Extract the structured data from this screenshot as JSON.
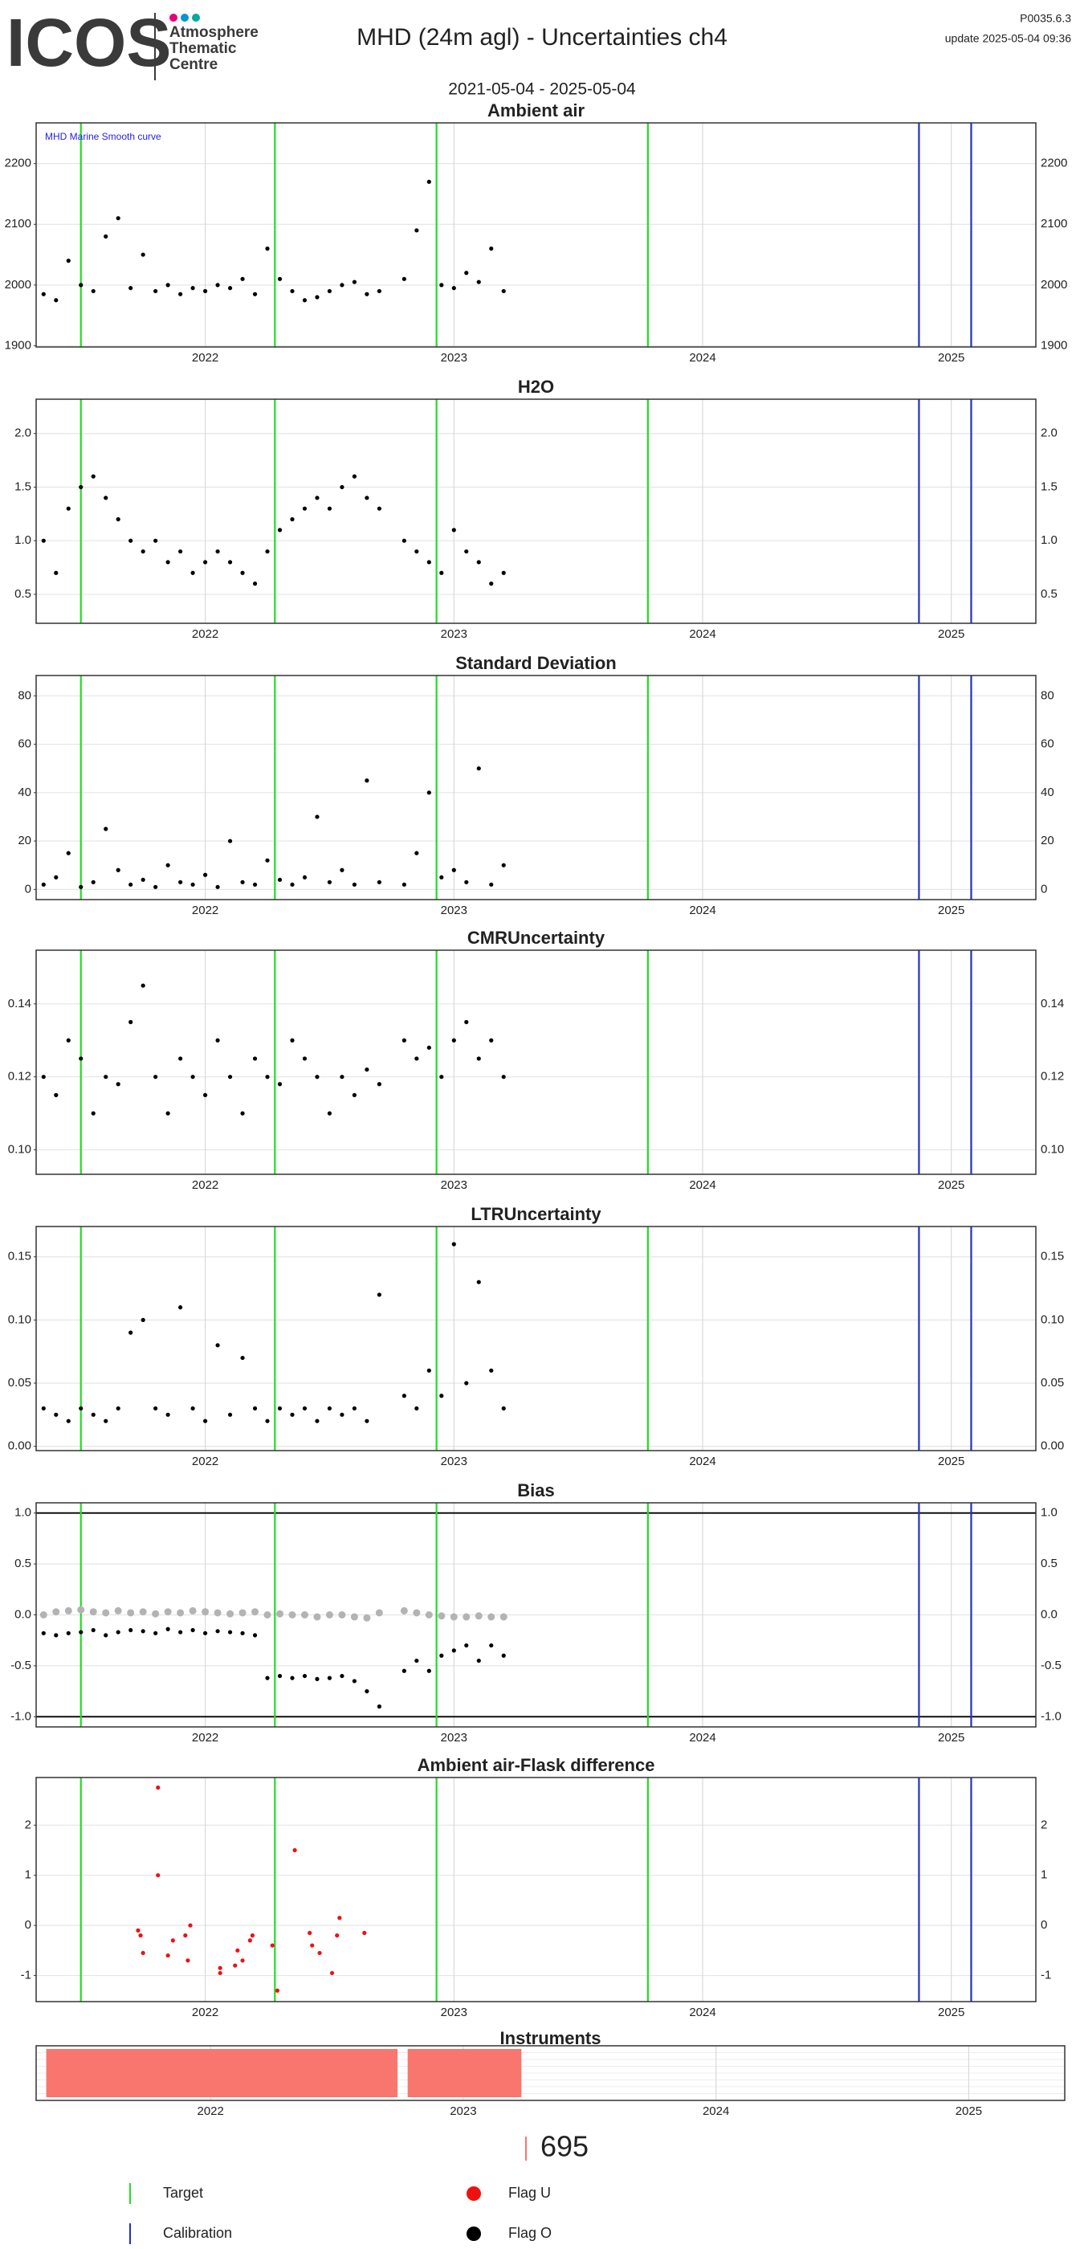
{
  "header": {
    "logo_text": "ICOS",
    "logo_lines": [
      "Atmosphere",
      "Thematic",
      "Centre"
    ],
    "title": "MHD  (24m agl) - Uncertainties ch4",
    "subtitle": "2021-05-04 - 2025-05-04",
    "version": "P0035.6.3",
    "update": "update  2025-05-04 09:36"
  },
  "markers": {
    "target": {
      "name": "Target",
      "color": "#22dd22",
      "x": [
        2021.5,
        2022.28,
        2022.93,
        2023.78
      ]
    },
    "calibration": {
      "name": "Calibration",
      "color": "#2233bb",
      "x": [
        2024.87,
        2025.08
      ]
    }
  },
  "flags": [
    {
      "name": "Flag U",
      "color": "#ee1111"
    },
    {
      "name": "Flag O",
      "color": "#000000"
    }
  ],
  "chart_data": [
    {
      "type": "scatter",
      "title": "Ambient air",
      "annotation": "MHD Marine Smooth curve",
      "xlim": [
        2021.32,
        2025.34
      ],
      "xticks": [
        2022,
        2023,
        2024,
        2025
      ],
      "ylim": [
        1898,
        2267
      ],
      "yticks": [
        1900,
        2000,
        2100,
        2200
      ],
      "grid": true,
      "series": [
        {
          "color": "#000000",
          "x": [
            2021.35,
            2021.4,
            2021.45,
            2021.5,
            2021.55,
            2021.6,
            2021.65,
            2021.7,
            2021.75,
            2021.8,
            2021.85,
            2021.9,
            2021.95,
            2022.0,
            2022.05,
            2022.1,
            2022.15,
            2022.2,
            2022.25,
            2022.3,
            2022.35,
            2022.4,
            2022.45,
            2022.5,
            2022.55,
            2022.6,
            2022.65,
            2022.7,
            2022.8,
            2022.85,
            2022.9,
            2022.95,
            2023.0,
            2023.05,
            2023.1,
            2023.15,
            2023.2
          ],
          "values": [
            1985,
            1975,
            2040,
            2000,
            1990,
            2080,
            2110,
            1995,
            2050,
            1990,
            2000,
            1985,
            1995,
            1990,
            2000,
            1995,
            2010,
            1985,
            2060,
            2010,
            1990,
            1975,
            1980,
            1990,
            2000,
            2005,
            1985,
            1990,
            2010,
            2090,
            2170,
            2000,
            1995,
            2020,
            2005,
            2060,
            1990
          ]
        }
      ]
    },
    {
      "type": "scatter",
      "title": "H2O",
      "xlim": [
        2021.32,
        2025.34
      ],
      "xticks": [
        2022,
        2023,
        2024,
        2025
      ],
      "ylim": [
        0.23,
        2.32
      ],
      "yticks": [
        0.5,
        {
          "value": 1,
          "label": "1.0"
        },
        1.5,
        {
          "value": 2,
          "label": "2.0"
        }
      ],
      "grid": true,
      "series": [
        {
          "color": "#000000",
          "x": [
            2021.35,
            2021.4,
            2021.45,
            2021.5,
            2021.55,
            2021.6,
            2021.65,
            2021.7,
            2021.75,
            2021.8,
            2021.85,
            2021.9,
            2021.95,
            2022.0,
            2022.05,
            2022.1,
            2022.15,
            2022.2,
            2022.25,
            2022.3,
            2022.35,
            2022.4,
            2022.45,
            2022.5,
            2022.55,
            2022.6,
            2022.65,
            2022.7,
            2022.8,
            2022.85,
            2022.9,
            2022.95,
            2023.0,
            2023.05,
            2023.1,
            2023.15,
            2023.2
          ],
          "values": [
            1.0,
            0.7,
            1.3,
            1.5,
            1.6,
            1.4,
            1.2,
            1.0,
            0.9,
            1.0,
            0.8,
            0.9,
            0.7,
            0.8,
            0.9,
            0.8,
            0.7,
            0.6,
            0.9,
            1.1,
            1.2,
            1.3,
            1.4,
            1.3,
            1.5,
            1.6,
            1.4,
            1.3,
            1.0,
            0.9,
            0.8,
            0.7,
            1.1,
            0.9,
            0.8,
            0.6,
            0.7
          ]
        }
      ]
    },
    {
      "type": "scatter",
      "title": "Standard Deviation",
      "xlim": [
        2021.32,
        2025.34
      ],
      "xticks": [
        2022,
        2023,
        2024,
        2025
      ],
      "ylim": [
        -4.2,
        88.4
      ],
      "yticks": [
        0,
        20,
        40,
        60,
        80
      ],
      "grid": true,
      "series": [
        {
          "color": "#000000",
          "x": [
            2021.35,
            2021.4,
            2021.45,
            2021.5,
            2021.55,
            2021.6,
            2021.65,
            2021.7,
            2021.75,
            2021.8,
            2021.85,
            2021.9,
            2021.95,
            2022.0,
            2022.05,
            2022.1,
            2022.15,
            2022.2,
            2022.25,
            2022.3,
            2022.35,
            2022.4,
            2022.45,
            2022.5,
            2022.55,
            2022.6,
            2022.65,
            2022.7,
            2022.8,
            2022.85,
            2022.9,
            2022.95,
            2023.0,
            2023.05,
            2023.1,
            2023.15,
            2023.2
          ],
          "values": [
            2,
            5,
            15,
            1,
            3,
            25,
            8,
            2,
            4,
            1,
            10,
            3,
            2,
            6,
            1,
            20,
            3,
            2,
            12,
            4,
            2,
            5,
            30,
            3,
            8,
            2,
            45,
            3,
            2,
            15,
            40,
            5,
            8,
            3,
            50,
            2,
            10
          ]
        }
      ]
    },
    {
      "type": "scatter",
      "title": "CMRUncertainty",
      "xlim": [
        2021.32,
        2025.34
      ],
      "xticks": [
        2022,
        2023,
        2024,
        2025
      ],
      "ylim": [
        0.0933,
        0.1547
      ],
      "yticks": [
        {
          "value": 0.1,
          "label": "0.10"
        },
        0.12,
        0.14
      ],
      "grid": true,
      "series": [
        {
          "color": "#000000",
          "x": [
            2021.35,
            2021.4,
            2021.45,
            2021.5,
            2021.55,
            2021.6,
            2021.65,
            2021.7,
            2021.75,
            2021.8,
            2021.85,
            2021.9,
            2021.95,
            2022.0,
            2022.05,
            2022.1,
            2022.15,
            2022.2,
            2022.25,
            2022.3,
            2022.35,
            2022.4,
            2022.45,
            2022.5,
            2022.55,
            2022.6,
            2022.65,
            2022.7,
            2022.8,
            2022.85,
            2022.9,
            2022.95,
            2023.0,
            2023.05,
            2023.1,
            2023.15,
            2023.2
          ],
          "values": [
            0.12,
            0.115,
            0.13,
            0.125,
            0.11,
            0.12,
            0.118,
            0.135,
            0.145,
            0.12,
            0.11,
            0.125,
            0.12,
            0.115,
            0.13,
            0.12,
            0.11,
            0.125,
            0.12,
            0.118,
            0.13,
            0.125,
            0.12,
            0.11,
            0.12,
            0.115,
            0.122,
            0.118,
            0.13,
            0.125,
            0.128,
            0.12,
            0.13,
            0.135,
            0.125,
            0.13,
            0.12
          ]
        }
      ]
    },
    {
      "type": "scatter",
      "title": "LTRUncertainty",
      "xlim": [
        2021.32,
        2025.34
      ],
      "xticks": [
        2022,
        2023,
        2024,
        2025
      ],
      "ylim": [
        -0.0034,
        0.174
      ],
      "yticks": [
        {
          "value": 0,
          "label": "0.00"
        },
        0.05,
        {
          "value": 0.1,
          "label": "0.10"
        },
        0.15
      ],
      "grid": true,
      "series": [
        {
          "color": "#000000",
          "x": [
            2021.35,
            2021.4,
            2021.45,
            2021.5,
            2021.55,
            2021.6,
            2021.65,
            2021.7,
            2021.75,
            2021.8,
            2021.85,
            2021.9,
            2021.95,
            2022.0,
            2022.05,
            2022.1,
            2022.15,
            2022.2,
            2022.25,
            2022.3,
            2022.35,
            2022.4,
            2022.45,
            2022.5,
            2022.55,
            2022.6,
            2022.65,
            2022.7,
            2022.8,
            2022.85,
            2022.9,
            2022.95,
            2023.0,
            2023.05,
            2023.1,
            2023.15,
            2023.2
          ],
          "values": [
            0.03,
            0.025,
            0.02,
            0.03,
            0.025,
            0.02,
            0.03,
            0.09,
            0.1,
            0.03,
            0.025,
            0.11,
            0.03,
            0.02,
            0.08,
            0.025,
            0.07,
            0.03,
            0.02,
            0.03,
            0.025,
            0.03,
            0.02,
            0.03,
            0.025,
            0.03,
            0.02,
            0.12,
            0.04,
            0.03,
            0.06,
            0.04,
            0.16,
            0.05,
            0.13,
            0.06,
            0.03
          ]
        }
      ]
    },
    {
      "type": "scatter",
      "title": "Bias",
      "xlim": [
        2021.32,
        2025.34
      ],
      "xticks": [
        2022,
        2023,
        2024,
        2025
      ],
      "ylim": [
        -1.1,
        1.1
      ],
      "yticks": [
        {
          "value": -1,
          "label": "-1.0"
        },
        -0.5,
        {
          "value": 0,
          "label": "0.0"
        },
        0.5,
        {
          "value": 1,
          "label": "1.0"
        }
      ],
      "hlines": [
        -1,
        1
      ],
      "grid": true,
      "series": [
        {
          "color": "#b3b3b3",
          "x": [
            2021.35,
            2021.4,
            2021.45,
            2021.5,
            2021.55,
            2021.6,
            2021.65,
            2021.7,
            2021.75,
            2021.8,
            2021.85,
            2021.9,
            2021.95,
            2022.0,
            2022.05,
            2022.1,
            2022.15,
            2022.2,
            2022.25,
            2022.3,
            2022.35,
            2022.4,
            2022.45,
            2022.5,
            2022.55,
            2022.6,
            2022.65,
            2022.7,
            2022.8,
            2022.85,
            2022.9,
            2022.95,
            2023.0,
            2023.05,
            2023.1,
            2023.15,
            2023.2
          ],
          "values": [
            0.0,
            0.03,
            0.04,
            0.05,
            0.03,
            0.02,
            0.04,
            0.02,
            0.03,
            0.01,
            0.03,
            0.02,
            0.04,
            0.03,
            0.02,
            0.01,
            0.02,
            0.03,
            0.0,
            0.01,
            0.0,
            0.0,
            -0.02,
            0.0,
            0.0,
            -0.02,
            -0.03,
            0.02,
            0.04,
            0.02,
            0.0,
            -0.01,
            -0.02,
            -0.02,
            -0.01,
            -0.02,
            -0.02
          ]
        },
        {
          "color": "#000000",
          "x": [
            2021.35,
            2021.4,
            2021.45,
            2021.5,
            2021.55,
            2021.6,
            2021.65,
            2021.7,
            2021.75,
            2021.8,
            2021.85,
            2021.9,
            2021.95,
            2022.0,
            2022.05,
            2022.1,
            2022.15,
            2022.2,
            2022.25,
            2022.3,
            2022.35,
            2022.4,
            2022.45,
            2022.5,
            2022.55,
            2022.6,
            2022.65,
            2022.7,
            2022.8,
            2022.85,
            2022.9,
            2022.95,
            2023.0,
            2023.05,
            2023.1,
            2023.15,
            2023.2
          ],
          "values": [
            -0.18,
            -0.2,
            -0.18,
            -0.17,
            -0.15,
            -0.2,
            -0.17,
            -0.15,
            -0.16,
            -0.18,
            -0.14,
            -0.17,
            -0.15,
            -0.18,
            -0.16,
            -0.17,
            -0.18,
            -0.2,
            -0.62,
            -0.6,
            -0.62,
            -0.6,
            -0.63,
            -0.62,
            -0.6,
            -0.65,
            -0.75,
            -0.9,
            -0.55,
            -0.45,
            -0.55,
            -0.4,
            -0.35,
            -0.3,
            -0.45,
            -0.3,
            -0.4
          ]
        }
      ]
    },
    {
      "type": "scatter",
      "title": "Ambient air-Flask difference",
      "xlim": [
        2021.32,
        2025.34
      ],
      "xticks": [
        2022,
        2023,
        2024,
        2025
      ],
      "ylim": [
        -1.52,
        2.95
      ],
      "yticks": [
        -1,
        0,
        1,
        2
      ],
      "grid": true,
      "series": [
        {
          "color": "#ee1111",
          "x": [
            2021.73,
            2021.74,
            2021.75,
            2021.81,
            2021.81,
            2021.85,
            2021.87,
            2021.92,
            2021.93,
            2021.94,
            2022.06,
            2022.06,
            2022.12,
            2022.13,
            2022.15,
            2022.18,
            2022.19,
            2022.27,
            2022.29,
            2022.36,
            2022.42,
            2022.43,
            2022.46,
            2022.51,
            2022.53,
            2022.54,
            2022.64
          ],
          "values": [
            -0.1,
            -0.2,
            -0.55,
            2.75,
            1.0,
            -0.6,
            -0.3,
            -0.2,
            -0.7,
            0.0,
            -0.95,
            -0.85,
            -0.8,
            -0.5,
            -0.7,
            -0.3,
            -0.2,
            -0.4,
            -1.3,
            1.5,
            -0.15,
            -0.4,
            -0.55,
            -0.95,
            -0.2,
            0.15,
            -0.15
          ]
        }
      ]
    },
    {
      "type": "timeline",
      "title": "Instruments",
      "xlim": [
        2021.31,
        2025.38
      ],
      "xticks": [
        2022,
        2023,
        2024,
        2025
      ],
      "series": [
        {
          "name": "695",
          "color": "#f8766d",
          "bars": [
            [
              2021.35,
              2022.74
            ],
            [
              2022.78,
              2023.23
            ]
          ]
        }
      ]
    }
  ]
}
